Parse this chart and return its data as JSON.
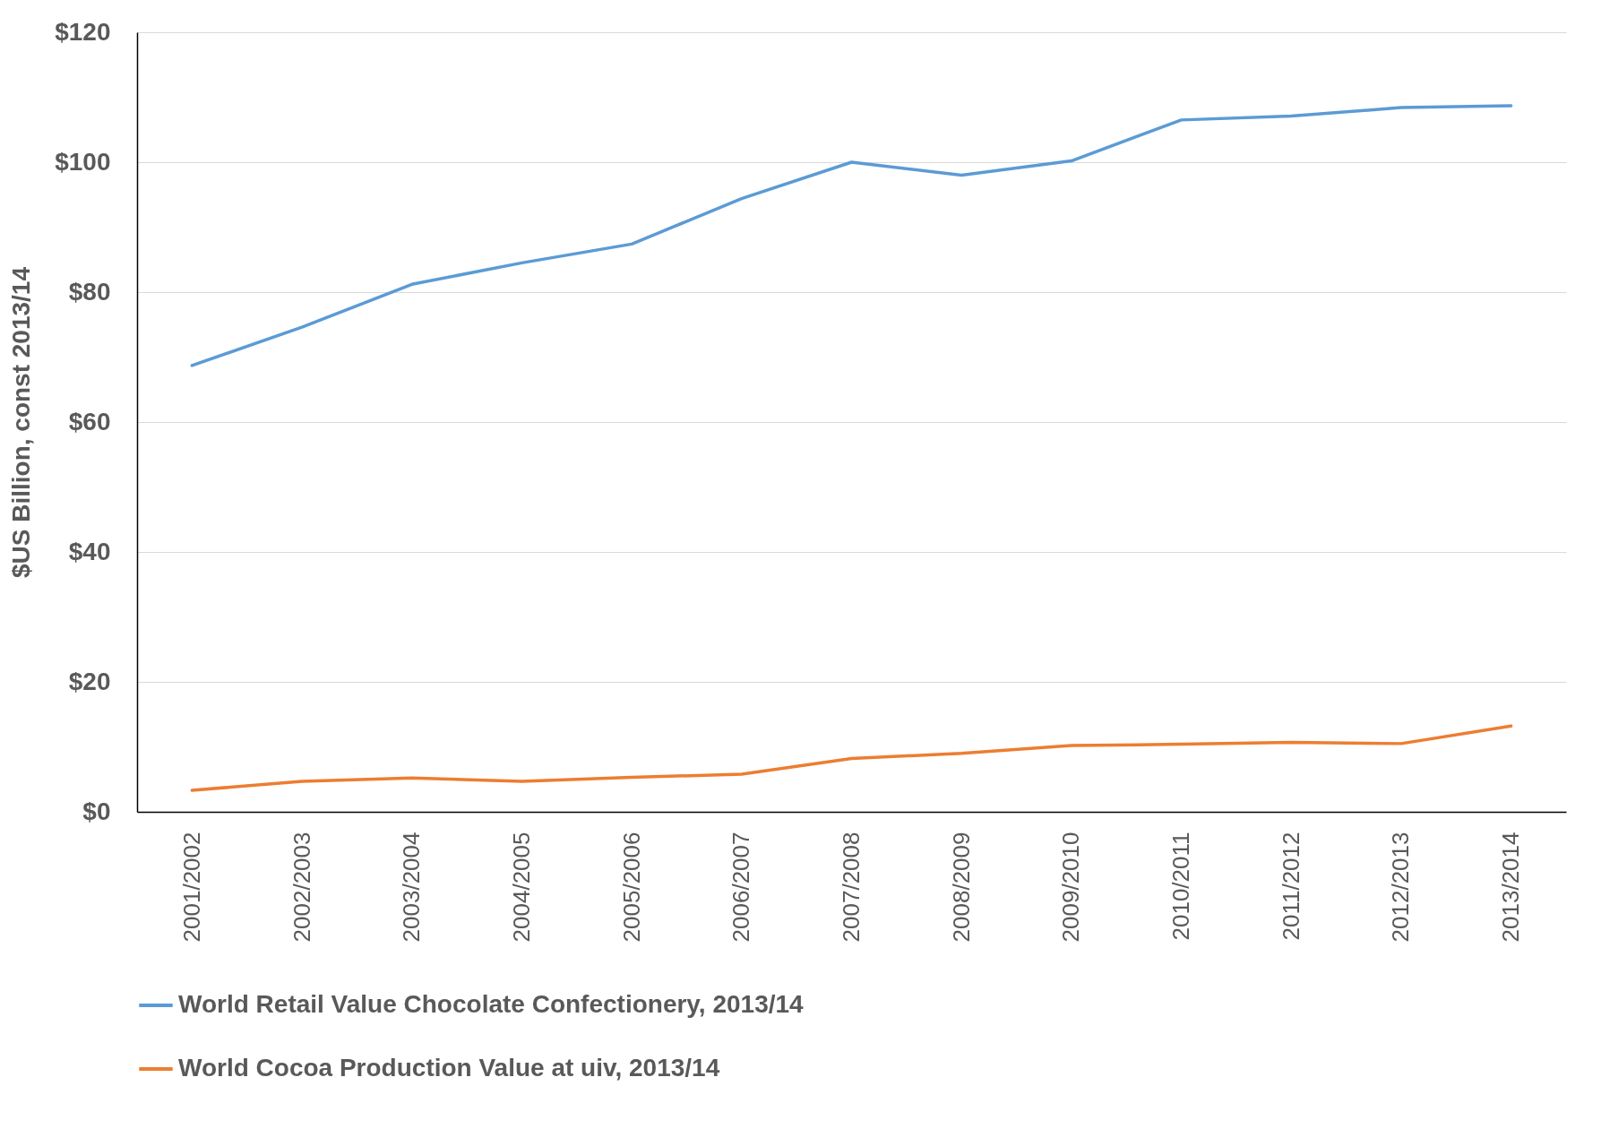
{
  "chart_data": {
    "type": "line",
    "ylabel": "$US Billion, const 2013/14",
    "categories": [
      "2001/2002",
      "2002/2003",
      "2003/2004",
      "2004/2005",
      "2005/2006",
      "2006/2007",
      "2007/2008",
      "2008/2009",
      "2009/2010",
      "2010/2011",
      "2011/2012",
      "2012/2013",
      "2013/2014"
    ],
    "series": [
      {
        "name": "World Retail Value Chocolate Confectionery, 2013/14",
        "color": "#5b9bd5",
        "values": [
          68.7,
          74.6,
          81.2,
          84.5,
          87.4,
          94.4,
          100.0,
          98.0,
          100.2,
          106.5,
          107.1,
          108.4,
          108.7
        ]
      },
      {
        "name": "World Cocoa Production Value at uiv, 2013/14",
        "color": "#ed7d31",
        "values": [
          3.3,
          4.7,
          5.2,
          4.7,
          5.3,
          5.8,
          8.2,
          9.0,
          10.2,
          10.4,
          10.7,
          10.5,
          13.2
        ]
      }
    ],
    "ylim": [
      0,
      120
    ],
    "yticks": [
      {
        "value": 0,
        "label": "$0"
      },
      {
        "value": 20,
        "label": "$20"
      },
      {
        "value": 40,
        "label": "$40"
      },
      {
        "value": 60,
        "label": "$60"
      },
      {
        "value": 80,
        "label": "$80"
      },
      {
        "value": 100,
        "label": "$100"
      },
      {
        "value": 120,
        "label": "$120"
      }
    ],
    "grid": "y",
    "legend": "bottom",
    "marker": "none",
    "line_style": "solid"
  }
}
